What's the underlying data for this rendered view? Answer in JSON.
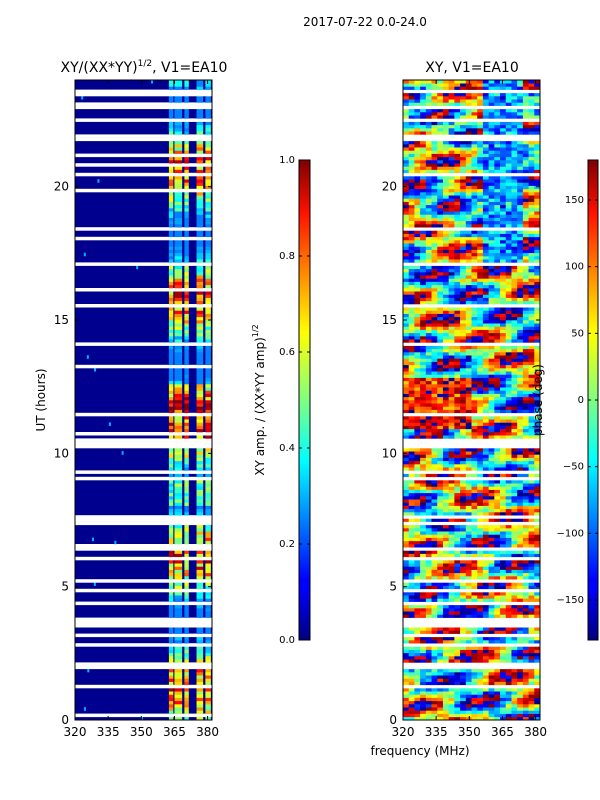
{
  "figure_title": "2017-07-22 0.0-24.0",
  "xlabel": "frequency (MHz)",
  "chart_data": [
    {
      "type": "heatmap",
      "title_base": "XY/(XX*YY)",
      "title_exp": "1/2",
      "title_tail": ", V1=EA10",
      "ylabel": "UT (hours)",
      "xlim": [
        320,
        382
      ],
      "ylim": [
        0,
        24
      ],
      "xticks": [
        320,
        335,
        350,
        365,
        380
      ],
      "yticks": [
        0,
        5,
        10,
        15,
        20
      ],
      "bright_columns_mhz": [
        [
          362.5,
          364.5
        ],
        [
          365.0,
          368.5
        ],
        [
          369.5,
          371.5
        ],
        [
          375.0,
          378.0
        ],
        [
          379.0,
          381.5
        ]
      ],
      "colorbar": {
        "label_base": "XY amp. / (XX*YY amp)",
        "label_exp": "1/2",
        "range": [
          0.0,
          1.0
        ],
        "ticks": [
          "0.0",
          "0.2",
          "0.4",
          "0.6",
          "0.8",
          "1.0"
        ]
      }
    },
    {
      "type": "heatmap",
      "title": "XY, V1=EA10",
      "ylabel": "",
      "xlim": [
        320,
        382
      ],
      "ylim": [
        0,
        24
      ],
      "xticks": [
        320,
        335,
        350,
        365,
        380
      ],
      "yticks": [
        0,
        5,
        10,
        15,
        20
      ],
      "colorbar": {
        "label": "phase (deg)",
        "range": [
          -180,
          180
        ],
        "ticks": [
          "-150",
          "-100",
          "-50",
          "0",
          "50",
          "100",
          "150"
        ]
      }
    }
  ]
}
